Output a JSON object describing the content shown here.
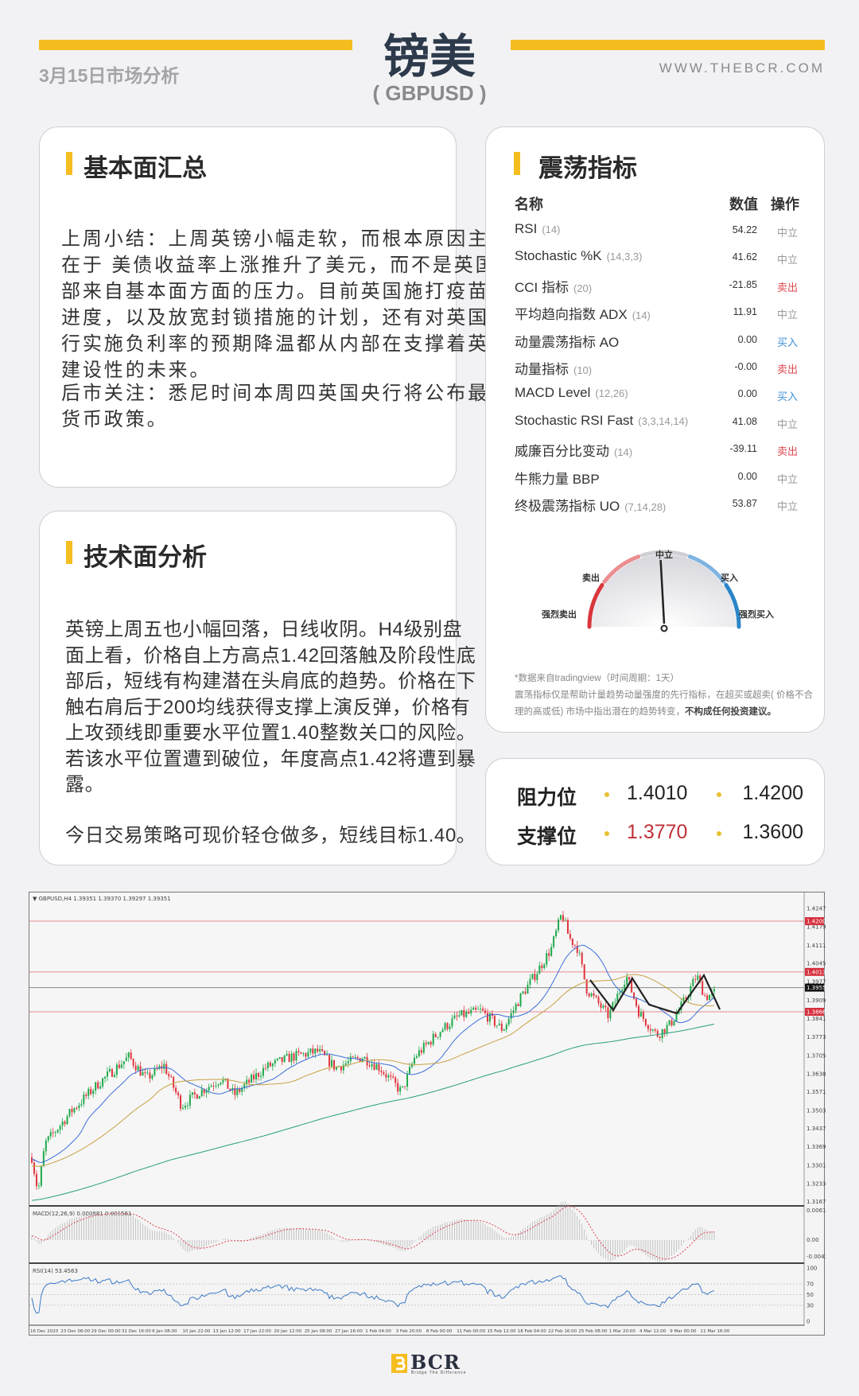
{
  "header": {
    "title": "镑美",
    "subtitle": "( GBPUSD )",
    "date": "3月15日市场分析",
    "website": "WWW.THEBCR.COM",
    "accent": "#f5bd1f"
  },
  "fundamentals": {
    "title": "基本面汇总",
    "para1": [
      "上周小结：上周英镑小幅走软，而根本原因主要",
      "在于 美债收益率上涨推升了美元，而不是英国内",
      "部来自基本面方面的压力。目前英国施打疫苗的",
      "进度，以及放宽封锁措施的计划，还有对英国央",
      "行实施负利率的预期降温都从内部在支撑着英镑",
      "建设性的未来。"
    ],
    "para2": [
      "后市关注：悉尼时间本周四英国央行将公布最新",
      "货币政策。"
    ]
  },
  "technical": {
    "title": "技术面分析",
    "para1": [
      "英镑上周五也小幅回落，日线收阴。H4级别盘",
      "面上看，价格自上方高点1.42回落触及阶段性底",
      "部后，短线有构建潜在头肩底的趋势。价格在下",
      "触右肩后于200均线获得支撑上演反弹，价格有",
      "上攻颈线即重要水平位置1.40整数关口的风险。",
      "若该水平位置遭到破位，年度高点1.42将遭到暴",
      "露。"
    ],
    "para2": [
      "今日交易策略可现价轻仓做多，短线目标1.40。"
    ]
  },
  "oscillators": {
    "title": "震荡指标",
    "col_name": "名称",
    "col_value": "数值",
    "col_action": "操作",
    "rows": [
      {
        "name": "RSI",
        "param": "(14)",
        "value": "54.22",
        "action": "中立",
        "type": "neutral"
      },
      {
        "name": "Stochastic %K",
        "param": "(14,3,3)",
        "value": "41.62",
        "action": "中立",
        "type": "neutral"
      },
      {
        "name": "CCI 指标",
        "param": "(20)",
        "value": "-21.85",
        "action": "卖出",
        "type": "sell"
      },
      {
        "name": "平均趋向指数 ADX",
        "param": "(14)",
        "value": "11.91",
        "action": "中立",
        "type": "neutral"
      },
      {
        "name": "动量震荡指标 AO",
        "param": "",
        "value": "0.00",
        "action": "买入",
        "type": "buy"
      },
      {
        "name": "动量指标",
        "param": "(10)",
        "value": "-0.00",
        "action": "卖出",
        "type": "sell"
      },
      {
        "name": "MACD Level",
        "param": "(12,26)",
        "value": "0.00",
        "action": "买入",
        "type": "buy"
      },
      {
        "name": "Stochastic RSI Fast",
        "param": "(3,3,14,14)",
        "value": "41.08",
        "action": "中立",
        "type": "neutral"
      },
      {
        "name": "威廉百分比变动",
        "param": "(14)",
        "value": "-39.11",
        "action": "卖出",
        "type": "sell"
      },
      {
        "name": "牛熊力量 BBP",
        "param": "",
        "value": "0.00",
        "action": "中立",
        "type": "neutral"
      },
      {
        "name": "终极震荡指标 UO",
        "param": "(7,14,28)",
        "value": "53.87",
        "action": "中立",
        "type": "neutral"
      }
    ],
    "action_colors": {
      "neutral": "#999999",
      "sell": "#e0474f",
      "buy": "#3d8fd6"
    },
    "gauge": {
      "labels": {
        "strong_sell": "强烈卖出",
        "sell": "卖出",
        "neutral": "中立",
        "buy": "买入",
        "strong_buy": "强烈买入"
      },
      "reading": "中立",
      "colors": {
        "strong_sell": "#d9363e",
        "sell": "#eb8d91",
        "neutral": "#cfcfd4",
        "buy": "#7fb4e0",
        "strong_buy": "#2b86c8"
      }
    },
    "note1": "*数据来自tradingview（时间周期：1天）",
    "note2": "震荡指标仅是帮助计量趋势动量强度的先行指标，在超买或超卖( 价格不合",
    "note3a": "理的高或低) 市场中指出潜在的趋势转变，",
    "note3b": "不构成任何投资建议。"
  },
  "levels": {
    "resistance_label": "阻力位",
    "support_label": "支撑位",
    "resistance": [
      "1.4010",
      "1.4200"
    ],
    "support": [
      "1.3770",
      "1.3600"
    ],
    "highlight_color": "#c0303a"
  },
  "chart": {
    "header": "▼ GBPUSD,H4  1.39351 1.39370 1.39297 1.39351",
    "price_axis": [
      "1.42470",
      "1.41790",
      "1.41110",
      "1.40450",
      "1.39770",
      "1.39090",
      "1.38410",
      "1.37730",
      "1.37050",
      "1.36380",
      "1.35710",
      "1.35030",
      "1.34370",
      "1.33690",
      "1.33010",
      "1.32330",
      "1.31670"
    ],
    "price_tags": [
      {
        "value": "1.42000",
        "kind": "red"
      },
      {
        "value": "1.40130",
        "kind": "red"
      },
      {
        "value": "1.39551",
        "kind": "black"
      },
      {
        "value": "1.38660",
        "kind": "red"
      }
    ],
    "macd_header": "MACD(12,26,9) 0.000881 0.001561",
    "macd_axis": [
      "0.006158",
      "0.00",
      "-0.004357"
    ],
    "rsi_header": "RSI(14) 53.4563",
    "rsi_axis": [
      "100",
      "70",
      "50",
      "30",
      "0"
    ],
    "time_axis": [
      "16 Dec 2020",
      "23 Dec 08:00",
      "29 Dec 00:00",
      "31 Dec 16:00",
      "6 Jan 08:00",
      "10 Jan 22:00",
      "13 Jan 12:00",
      "17 Jan 22:00",
      "20 Jan 12:00",
      "25 Jan 08:00",
      "27 Jan 16:00",
      "1 Feb 04:00",
      "3 Feb 20:00",
      "8 Feb 00:00",
      "11 Feb 00:00",
      "15 Feb 12:00",
      "18 Feb 04:00",
      "22 Feb 16:00",
      "25 Feb 08:00",
      "1 Mar 20:00",
      "4 Mar 12:00",
      "9 Mar 00:00",
      "11 Mar 16:00"
    ],
    "colors": {
      "up": "#1fa94b",
      "down": "#e0343c",
      "ma_fast": "#3b6fd8",
      "ma_mid": "#c9a044",
      "ma_slow": "#27a07d",
      "rsi": "#3a7ac8",
      "signal": "#e04050"
    }
  },
  "logo": {
    "name": "BCR",
    "tagline": "Bridge The Difference"
  }
}
